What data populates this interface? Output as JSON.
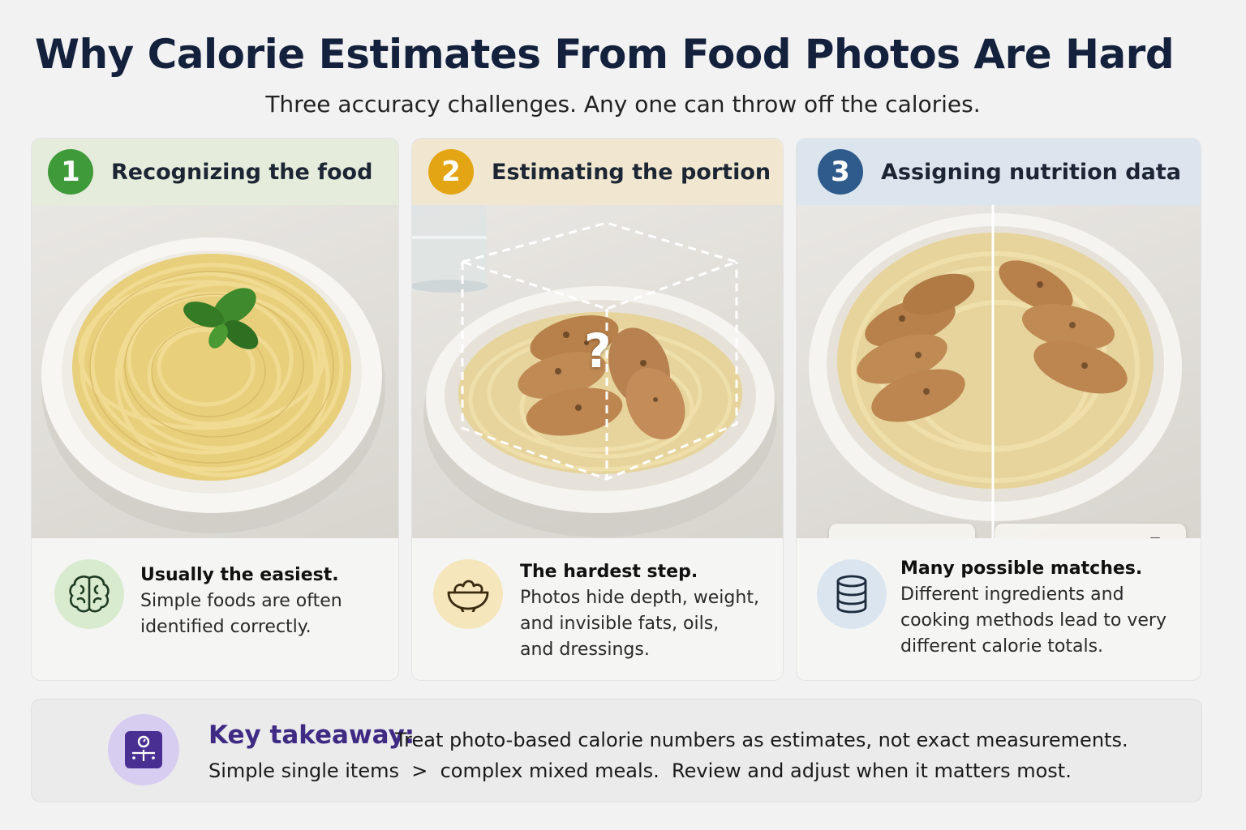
{
  "header": {
    "title": "Why Calorie Estimates From Food Photos Are Hard",
    "subtitle": "Three accuracy challenges. Any one can throw off the calories."
  },
  "cards": [
    {
      "number": "1",
      "title": "Recognizing the food",
      "number_color": "#3f9b3a",
      "header_color": "#e6ecdc",
      "icon": "brain-icon",
      "icon_bg": "#d9ebcf",
      "lead": "Usually the easiest.",
      "body": [
        "Simple foods are often",
        "identified correctly."
      ]
    },
    {
      "number": "2",
      "title": "Estimating the portion",
      "number_color": "#e3a514",
      "header_color": "#f1e7d0",
      "icon": "bowl-icon",
      "icon_bg": "#f6e6bb",
      "overlay": "?",
      "lead": "The hardest step.",
      "body": [
        "Photos hide depth, weight,",
        "and invisible fats, oils,",
        "and dressings."
      ]
    },
    {
      "number": "3",
      "title": "Assigning nutrition data",
      "number_color": "#2e5b8c",
      "header_color": "#dce5ee",
      "icon": "database-icon",
      "icon_bg": "#dbe5f0",
      "ingredient_sets": [
        [
          "chicken-icon",
          "+",
          "grain-icon"
        ],
        [
          "chicken-icon",
          "+",
          "butter-icon",
          "+",
          "oil-bottle-icon"
        ]
      ],
      "lead": "Many possible matches.",
      "body": [
        "Different ingredients and",
        "cooking methods lead to very",
        "different calorie totals."
      ]
    }
  ],
  "takeaway": {
    "label": "Key takeaway:",
    "line1": "Treat photo-based calorie numbers as estimates, not exact measurements.",
    "line2": "Simple single items  >  complex mixed meals.  Review and adjust when it matters most.",
    "icon": "scale-icon",
    "accent": "#3f2a84"
  }
}
